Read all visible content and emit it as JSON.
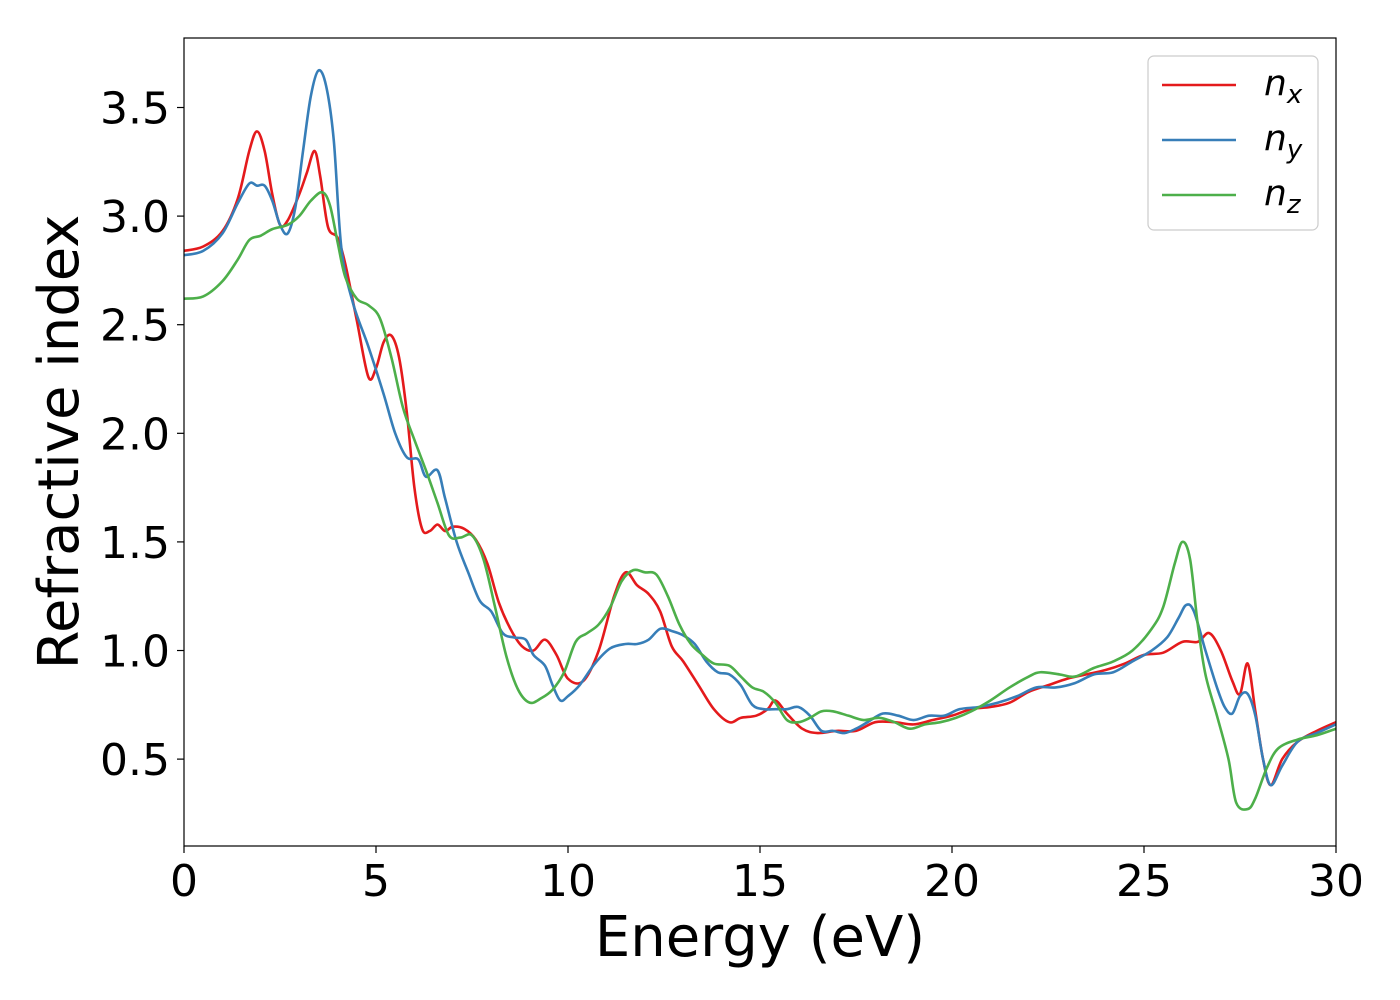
{
  "chart_data": {
    "type": "line",
    "xlabel": "Energy (eV)",
    "ylabel": "Refractive index",
    "xlim": [
      0,
      30
    ],
    "ylim": [
      0.1,
      3.82
    ],
    "xticks": [
      0,
      5,
      10,
      15,
      20,
      25,
      30
    ],
    "xtick_labels": [
      "0",
      "5",
      "10",
      "15",
      "20",
      "25",
      "30"
    ],
    "yticks": [
      0.5,
      1.0,
      1.5,
      2.0,
      2.5,
      3.0,
      3.5
    ],
    "ytick_labels": [
      "0.5",
      "1.0",
      "1.5",
      "2.0",
      "2.5",
      "3.0",
      "3.5"
    ],
    "grid": false,
    "legend_position": "top-right",
    "series": [
      {
        "name": "n",
        "subscript": "x",
        "color": "#e41a1c",
        "points": [
          [
            0,
            2.84
          ],
          [
            0.5,
            2.86
          ],
          [
            1.0,
            2.93
          ],
          [
            1.4,
            3.08
          ],
          [
            1.7,
            3.3
          ],
          [
            1.9,
            3.39
          ],
          [
            2.1,
            3.3
          ],
          [
            2.3,
            3.1
          ],
          [
            2.5,
            2.96
          ],
          [
            2.7,
            2.98
          ],
          [
            3.0,
            3.1
          ],
          [
            3.2,
            3.2
          ],
          [
            3.4,
            3.3
          ],
          [
            3.55,
            3.18
          ],
          [
            3.75,
            2.95
          ],
          [
            4.0,
            2.9
          ],
          [
            4.2,
            2.78
          ],
          [
            4.5,
            2.52
          ],
          [
            4.8,
            2.26
          ],
          [
            5.0,
            2.3
          ],
          [
            5.2,
            2.42
          ],
          [
            5.4,
            2.45
          ],
          [
            5.6,
            2.35
          ],
          [
            5.8,
            2.1
          ],
          [
            6.0,
            1.75
          ],
          [
            6.2,
            1.56
          ],
          [
            6.4,
            1.55
          ],
          [
            6.6,
            1.58
          ],
          [
            6.8,
            1.55
          ],
          [
            7.0,
            1.57
          ],
          [
            7.3,
            1.56
          ],
          [
            7.6,
            1.51
          ],
          [
            7.9,
            1.4
          ],
          [
            8.2,
            1.22
          ],
          [
            8.5,
            1.1
          ],
          [
            8.8,
            1.02
          ],
          [
            9.1,
            1.0
          ],
          [
            9.4,
            1.05
          ],
          [
            9.7,
            0.98
          ],
          [
            10.0,
            0.87
          ],
          [
            10.4,
            0.86
          ],
          [
            10.8,
            1.0
          ],
          [
            11.2,
            1.25
          ],
          [
            11.5,
            1.36
          ],
          [
            11.8,
            1.3
          ],
          [
            12.1,
            1.26
          ],
          [
            12.4,
            1.18
          ],
          [
            12.7,
            1.02
          ],
          [
            13.0,
            0.95
          ],
          [
            13.4,
            0.84
          ],
          [
            13.8,
            0.73
          ],
          [
            14.2,
            0.67
          ],
          [
            14.5,
            0.69
          ],
          [
            14.9,
            0.7
          ],
          [
            15.2,
            0.73
          ],
          [
            15.4,
            0.77
          ],
          [
            15.7,
            0.71
          ],
          [
            16.1,
            0.64
          ],
          [
            16.5,
            0.62
          ],
          [
            17.0,
            0.63
          ],
          [
            17.5,
            0.63
          ],
          [
            18.0,
            0.67
          ],
          [
            18.5,
            0.67
          ],
          [
            19.0,
            0.66
          ],
          [
            19.5,
            0.68
          ],
          [
            20.0,
            0.7
          ],
          [
            20.5,
            0.73
          ],
          [
            21.0,
            0.74
          ],
          [
            21.5,
            0.76
          ],
          [
            22.0,
            0.81
          ],
          [
            22.5,
            0.84
          ],
          [
            23.0,
            0.87
          ],
          [
            23.5,
            0.89
          ],
          [
            24.0,
            0.91
          ],
          [
            24.5,
            0.94
          ],
          [
            25.0,
            0.98
          ],
          [
            25.5,
            0.99
          ],
          [
            26.0,
            1.04
          ],
          [
            26.4,
            1.04
          ],
          [
            26.7,
            1.08
          ],
          [
            27.0,
            1.0
          ],
          [
            27.3,
            0.86
          ],
          [
            27.5,
            0.8
          ],
          [
            27.7,
            0.94
          ],
          [
            27.9,
            0.72
          ],
          [
            28.1,
            0.5
          ],
          [
            28.3,
            0.38
          ],
          [
            28.6,
            0.5
          ],
          [
            29.0,
            0.58
          ],
          [
            29.5,
            0.63
          ],
          [
            30.0,
            0.67
          ]
        ]
      },
      {
        "name": "n",
        "subscript": "y",
        "color": "#377eb8",
        "points": [
          [
            0,
            2.82
          ],
          [
            0.5,
            2.84
          ],
          [
            1.0,
            2.92
          ],
          [
            1.4,
            3.06
          ],
          [
            1.7,
            3.15
          ],
          [
            1.9,
            3.14
          ],
          [
            2.1,
            3.14
          ],
          [
            2.3,
            3.07
          ],
          [
            2.5,
            2.96
          ],
          [
            2.7,
            2.92
          ],
          [
            2.9,
            3.04
          ],
          [
            3.1,
            3.3
          ],
          [
            3.3,
            3.55
          ],
          [
            3.5,
            3.67
          ],
          [
            3.7,
            3.6
          ],
          [
            3.9,
            3.35
          ],
          [
            4.1,
            2.85
          ],
          [
            4.4,
            2.6
          ],
          [
            4.8,
            2.4
          ],
          [
            5.2,
            2.18
          ],
          [
            5.5,
            2.0
          ],
          [
            5.8,
            1.89
          ],
          [
            6.1,
            1.88
          ],
          [
            6.3,
            1.8
          ],
          [
            6.6,
            1.83
          ],
          [
            6.8,
            1.7
          ],
          [
            7.1,
            1.5
          ],
          [
            7.4,
            1.36
          ],
          [
            7.7,
            1.23
          ],
          [
            8.0,
            1.18
          ],
          [
            8.3,
            1.08
          ],
          [
            8.6,
            1.06
          ],
          [
            8.9,
            1.05
          ],
          [
            9.1,
            0.98
          ],
          [
            9.4,
            0.93
          ],
          [
            9.6,
            0.84
          ],
          [
            9.8,
            0.77
          ],
          [
            10.0,
            0.79
          ],
          [
            10.3,
            0.84
          ],
          [
            10.7,
            0.94
          ],
          [
            11.1,
            1.01
          ],
          [
            11.5,
            1.03
          ],
          [
            11.8,
            1.03
          ],
          [
            12.1,
            1.05
          ],
          [
            12.4,
            1.1
          ],
          [
            12.7,
            1.09
          ],
          [
            13.0,
            1.07
          ],
          [
            13.3,
            1.03
          ],
          [
            13.6,
            0.95
          ],
          [
            13.9,
            0.9
          ],
          [
            14.2,
            0.89
          ],
          [
            14.5,
            0.84
          ],
          [
            14.8,
            0.75
          ],
          [
            15.1,
            0.73
          ],
          [
            15.4,
            0.73
          ],
          [
            15.7,
            0.73
          ],
          [
            16.0,
            0.74
          ],
          [
            16.3,
            0.7
          ],
          [
            16.6,
            0.63
          ],
          [
            16.9,
            0.63
          ],
          [
            17.2,
            0.62
          ],
          [
            17.5,
            0.64
          ],
          [
            17.8,
            0.67
          ],
          [
            18.2,
            0.71
          ],
          [
            18.6,
            0.7
          ],
          [
            19.0,
            0.68
          ],
          [
            19.4,
            0.7
          ],
          [
            19.8,
            0.7
          ],
          [
            20.2,
            0.73
          ],
          [
            20.7,
            0.74
          ],
          [
            21.2,
            0.76
          ],
          [
            21.7,
            0.79
          ],
          [
            22.2,
            0.83
          ],
          [
            22.7,
            0.83
          ],
          [
            23.2,
            0.85
          ],
          [
            23.7,
            0.89
          ],
          [
            24.2,
            0.9
          ],
          [
            24.7,
            0.95
          ],
          [
            25.2,
            1.0
          ],
          [
            25.6,
            1.06
          ],
          [
            25.9,
            1.15
          ],
          [
            26.1,
            1.21
          ],
          [
            26.3,
            1.18
          ],
          [
            26.6,
            1.0
          ],
          [
            26.9,
            0.83
          ],
          [
            27.1,
            0.74
          ],
          [
            27.3,
            0.71
          ],
          [
            27.5,
            0.79
          ],
          [
            27.7,
            0.8
          ],
          [
            27.9,
            0.7
          ],
          [
            28.1,
            0.5
          ],
          [
            28.3,
            0.38
          ],
          [
            28.6,
            0.47
          ],
          [
            29.0,
            0.58
          ],
          [
            29.5,
            0.62
          ],
          [
            30.0,
            0.66
          ]
        ]
      },
      {
        "name": "n",
        "subscript": "z",
        "color": "#4daf4a",
        "points": [
          [
            0,
            2.62
          ],
          [
            0.5,
            2.63
          ],
          [
            1.0,
            2.7
          ],
          [
            1.4,
            2.8
          ],
          [
            1.7,
            2.89
          ],
          [
            2.0,
            2.91
          ],
          [
            2.3,
            2.94
          ],
          [
            2.7,
            2.96
          ],
          [
            3.0,
            3.0
          ],
          [
            3.3,
            3.07
          ],
          [
            3.6,
            3.11
          ],
          [
            3.8,
            3.05
          ],
          [
            4.0,
            2.88
          ],
          [
            4.2,
            2.72
          ],
          [
            4.5,
            2.62
          ],
          [
            4.8,
            2.59
          ],
          [
            5.1,
            2.53
          ],
          [
            5.4,
            2.35
          ],
          [
            5.7,
            2.12
          ],
          [
            6.0,
            1.97
          ],
          [
            6.3,
            1.83
          ],
          [
            6.6,
            1.68
          ],
          [
            6.9,
            1.53
          ],
          [
            7.2,
            1.52
          ],
          [
            7.5,
            1.53
          ],
          [
            7.8,
            1.42
          ],
          [
            8.1,
            1.2
          ],
          [
            8.4,
            0.97
          ],
          [
            8.7,
            0.82
          ],
          [
            9.0,
            0.76
          ],
          [
            9.3,
            0.78
          ],
          [
            9.6,
            0.82
          ],
          [
            9.9,
            0.9
          ],
          [
            10.2,
            1.04
          ],
          [
            10.5,
            1.08
          ],
          [
            10.8,
            1.12
          ],
          [
            11.1,
            1.2
          ],
          [
            11.4,
            1.32
          ],
          [
            11.7,
            1.37
          ],
          [
            12.0,
            1.36
          ],
          [
            12.3,
            1.35
          ],
          [
            12.6,
            1.25
          ],
          [
            12.9,
            1.12
          ],
          [
            13.2,
            1.03
          ],
          [
            13.5,
            0.98
          ],
          [
            13.8,
            0.94
          ],
          [
            14.2,
            0.93
          ],
          [
            14.5,
            0.88
          ],
          [
            14.8,
            0.83
          ],
          [
            15.1,
            0.81
          ],
          [
            15.4,
            0.76
          ],
          [
            15.7,
            0.68
          ],
          [
            16.0,
            0.67
          ],
          [
            16.3,
            0.69
          ],
          [
            16.6,
            0.72
          ],
          [
            16.9,
            0.72
          ],
          [
            17.3,
            0.7
          ],
          [
            17.7,
            0.68
          ],
          [
            18.1,
            0.69
          ],
          [
            18.5,
            0.67
          ],
          [
            18.9,
            0.64
          ],
          [
            19.3,
            0.66
          ],
          [
            19.7,
            0.67
          ],
          [
            20.1,
            0.69
          ],
          [
            20.5,
            0.72
          ],
          [
            21.0,
            0.77
          ],
          [
            21.5,
            0.83
          ],
          [
            22.0,
            0.88
          ],
          [
            22.3,
            0.9
          ],
          [
            22.8,
            0.89
          ],
          [
            23.2,
            0.88
          ],
          [
            23.7,
            0.92
          ],
          [
            24.2,
            0.95
          ],
          [
            24.7,
            1.0
          ],
          [
            25.2,
            1.1
          ],
          [
            25.5,
            1.2
          ],
          [
            25.8,
            1.4
          ],
          [
            26.0,
            1.5
          ],
          [
            26.2,
            1.42
          ],
          [
            26.4,
            1.12
          ],
          [
            26.6,
            0.89
          ],
          [
            26.9,
            0.7
          ],
          [
            27.2,
            0.5
          ],
          [
            27.4,
            0.3
          ],
          [
            27.7,
            0.27
          ],
          [
            27.9,
            0.32
          ],
          [
            28.2,
            0.46
          ],
          [
            28.5,
            0.55
          ],
          [
            29.0,
            0.59
          ],
          [
            29.5,
            0.61
          ],
          [
            30.0,
            0.64
          ]
        ]
      }
    ]
  }
}
